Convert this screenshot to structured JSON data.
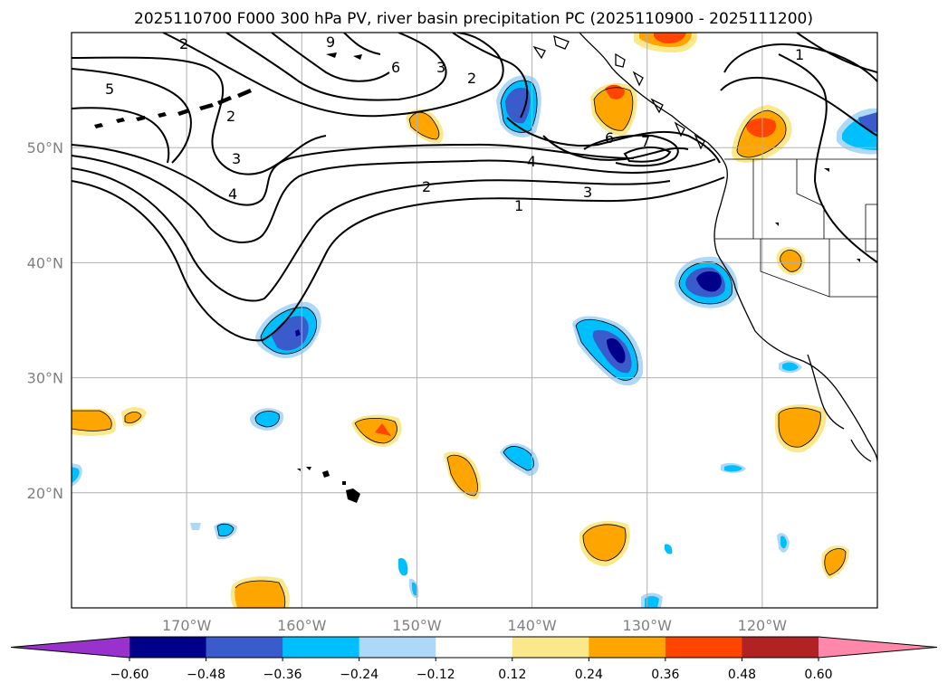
{
  "title": "2025110700 F000 300 hPa PV, river basin precipitation PC (2025110900 - 2025111200)",
  "map": {
    "lon_range": [
      -180,
      -110
    ],
    "lat_range": [
      10,
      60
    ],
    "lon_ticks": [
      {
        "value": -170,
        "label": "170°W"
      },
      {
        "value": -160,
        "label": "160°W"
      },
      {
        "value": -150,
        "label": "150°W"
      },
      {
        "value": -140,
        "label": "140°W"
      },
      {
        "value": -130,
        "label": "130°W"
      },
      {
        "value": -120,
        "label": "120°W"
      }
    ],
    "lat_ticks": [
      {
        "value": 20,
        "label": "20°N"
      },
      {
        "value": 30,
        "label": "30°N"
      },
      {
        "value": 40,
        "label": "40°N"
      },
      {
        "value": 50,
        "label": "50°N"
      }
    ],
    "gridlines": true,
    "pv_contours": {
      "variable": "300 hPa PV",
      "contour_labels": [
        "1",
        "1",
        "2",
        "2",
        "2",
        "3",
        "3",
        "3",
        "4",
        "4",
        "5",
        "6",
        "6",
        "7",
        "9"
      ]
    },
    "precip_pc": {
      "variable": "river basin precipitation PC",
      "anomalies": [
        {
          "name": "negative-anomaly-north-pacific",
          "lon": -142,
          "lat": 54,
          "peak": -0.48
        },
        {
          "name": "negative-anomaly-central",
          "lon": -160,
          "lat": 34.5,
          "peak": -0.48
        },
        {
          "name": "negative-anomaly-california",
          "lon": -124.5,
          "lat": 38.5,
          "peak": -0.6
        },
        {
          "name": "negative-anomaly-subtropical",
          "lon": -133,
          "lat": 32.5,
          "peak": -0.6
        },
        {
          "name": "positive-anomaly-gulf-alaska",
          "lon": -149,
          "lat": 52.5,
          "peak": 0.24
        },
        {
          "name": "positive-anomaly-bc-coast",
          "lon": -133,
          "lat": 54,
          "peak": 0.36
        },
        {
          "name": "positive-anomaly-pacific-nw",
          "lon": -120,
          "lat": 51.5,
          "peak": 0.48
        },
        {
          "name": "positive-anomaly-hawaii-north",
          "lon": -152.5,
          "lat": 25.5,
          "peak": 0.36
        },
        {
          "name": "positive-anomaly-mexico",
          "lon": -117,
          "lat": 25.5,
          "peak": 0.24
        }
      ]
    }
  },
  "colorbar": {
    "colors": [
      "#9932cc",
      "#00008b",
      "#3a5bcc",
      "#00bfff",
      "#add8f7",
      "#ffffff",
      "#fbe88a",
      "#ffa500",
      "#ff4500",
      "#b22222",
      "#ff88aa"
    ],
    "ticks": [
      "−0.60",
      "−0.48",
      "−0.36",
      "−0.24",
      "−0.12",
      "0.12",
      "0.24",
      "0.36",
      "0.48",
      "0.60"
    ],
    "extend": "both"
  }
}
